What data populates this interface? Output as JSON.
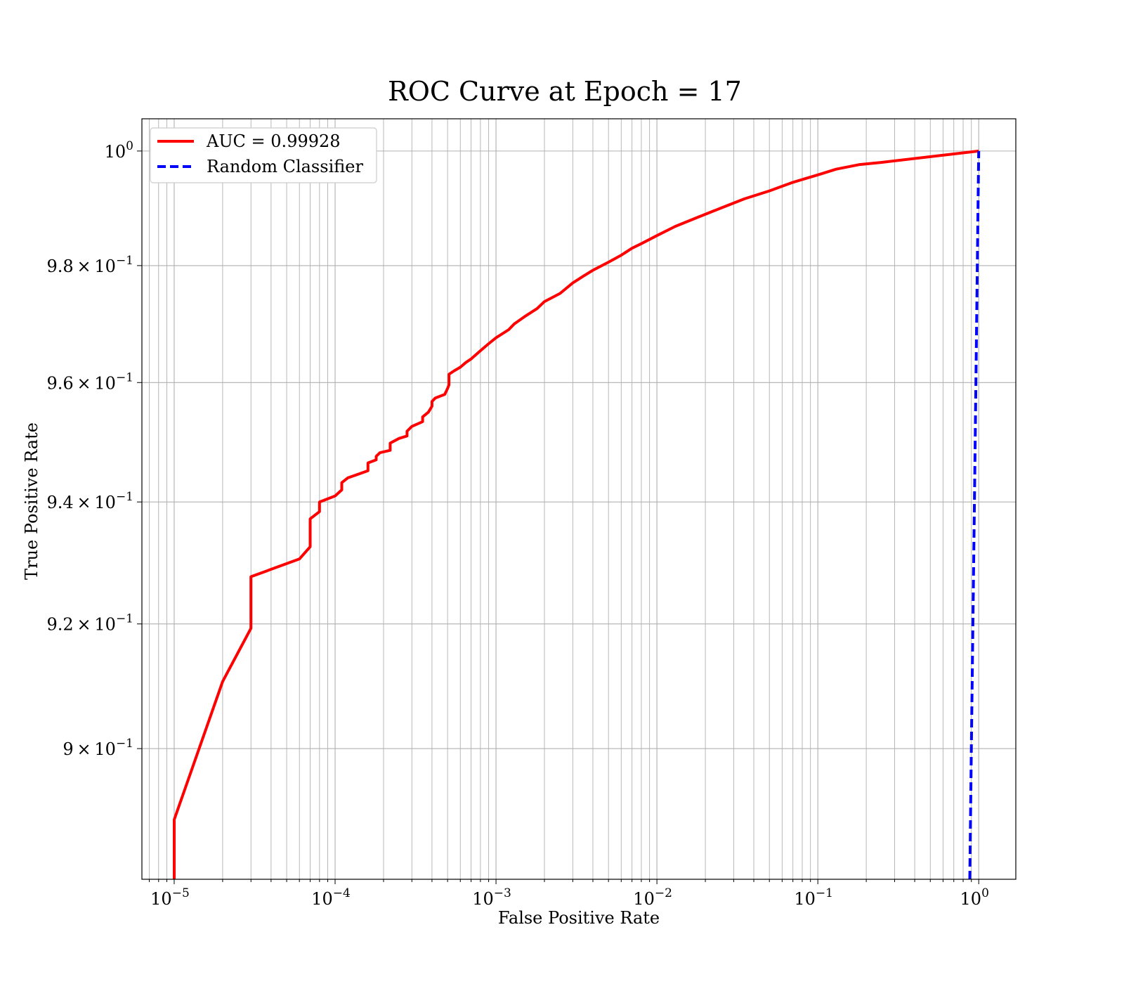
{
  "chart_data": {
    "type": "line",
    "title": "ROC Curve at Epoch = 17",
    "xlabel": "False Positive Rate",
    "ylabel": "True Positive Rate",
    "xscale": "log",
    "yscale": "log",
    "xlim": [
      6.3e-06,
      1.7
    ],
    "ylim": [
      0.8795,
      1.0057
    ],
    "x_ticks": [
      {
        "value": 1e-05,
        "base": "10",
        "exp": "−5"
      },
      {
        "value": 0.0001,
        "base": "10",
        "exp": "−4"
      },
      {
        "value": 0.001,
        "base": "10",
        "exp": "−3"
      },
      {
        "value": 0.01,
        "base": "10",
        "exp": "−2"
      },
      {
        "value": 0.1,
        "base": "10",
        "exp": "−1"
      },
      {
        "value": 1,
        "base": "10",
        "exp": "0"
      }
    ],
    "y_ticks": [
      {
        "value": 1.0,
        "base": "10",
        "exp": "0"
      },
      {
        "value": 0.98,
        "base": "9.8 × 10",
        "exp": "−1"
      },
      {
        "value": 0.96,
        "base": "9.6 × 10",
        "exp": "−1"
      },
      {
        "value": 0.94,
        "base": "9.4 × 10",
        "exp": "−1"
      },
      {
        "value": 0.92,
        "base": "9.2 × 10",
        "exp": "−1"
      },
      {
        "value": 0.9,
        "base": "9 × 10",
        "exp": "−1"
      }
    ],
    "grid": true,
    "legend_position": "top-left",
    "series": [
      {
        "name": "AUC = 0.99928",
        "color": "#ff0000",
        "style": "solid",
        "points": [
          [
            1e-05,
            0.8795
          ],
          [
            1e-05,
            0.8888
          ],
          [
            2e-05,
            0.9107
          ],
          [
            3e-05,
            0.9193
          ],
          [
            3e-05,
            0.9277
          ],
          [
            6e-05,
            0.9306
          ],
          [
            7e-05,
            0.9326
          ],
          [
            7e-05,
            0.9372
          ],
          [
            8e-05,
            0.9384
          ],
          [
            8e-05,
            0.94
          ],
          [
            0.0001,
            0.941
          ],
          [
            0.00011,
            0.942
          ],
          [
            0.00011,
            0.9432
          ],
          [
            0.00012,
            0.944
          ],
          [
            0.00016,
            0.9452
          ],
          [
            0.00016,
            0.9465
          ],
          [
            0.00018,
            0.947
          ],
          [
            0.00018,
            0.9476
          ],
          [
            0.00019,
            0.9482
          ],
          [
            0.00022,
            0.9486
          ],
          [
            0.00022,
            0.9498
          ],
          [
            0.00025,
            0.9506
          ],
          [
            0.00028,
            0.951
          ],
          [
            0.00028,
            0.9518
          ],
          [
            0.0003,
            0.9526
          ],
          [
            0.00035,
            0.9534
          ],
          [
            0.00035,
            0.9542
          ],
          [
            0.00038,
            0.955
          ],
          [
            0.0004,
            0.956
          ],
          [
            0.0004,
            0.9568
          ],
          [
            0.00042,
            0.9574
          ],
          [
            0.00048,
            0.958
          ],
          [
            0.0005,
            0.959
          ],
          [
            0.00051,
            0.9596
          ],
          [
            0.00051,
            0.9614
          ],
          [
            0.00055,
            0.962
          ],
          [
            0.0006,
            0.9626
          ],
          [
            0.00065,
            0.9634
          ],
          [
            0.0007,
            0.964
          ],
          [
            0.0008,
            0.9654
          ],
          [
            0.0009,
            0.9666
          ],
          [
            0.001,
            0.9676
          ],
          [
            0.0012,
            0.969
          ],
          [
            0.0013,
            0.97
          ],
          [
            0.0015,
            0.9712
          ],
          [
            0.0018,
            0.9726
          ],
          [
            0.002,
            0.9738
          ],
          [
            0.0025,
            0.9752
          ],
          [
            0.003,
            0.977
          ],
          [
            0.0035,
            0.9782
          ],
          [
            0.004,
            0.9792
          ],
          [
            0.005,
            0.9806
          ],
          [
            0.006,
            0.9818
          ],
          [
            0.007,
            0.983
          ],
          [
            0.008,
            0.9838
          ],
          [
            0.01,
            0.9852
          ],
          [
            0.013,
            0.9868
          ],
          [
            0.018,
            0.9884
          ],
          [
            0.025,
            0.99
          ],
          [
            0.035,
            0.9916
          ],
          [
            0.05,
            0.993
          ],
          [
            0.07,
            0.9945
          ],
          [
            0.1,
            0.9958
          ],
          [
            0.13,
            0.9968
          ],
          [
            0.18,
            0.9976
          ],
          [
            0.25,
            0.998
          ],
          [
            1.0,
            1.0
          ]
        ]
      },
      {
        "name": "Random Classifier",
        "color": "#0000ff",
        "style": "dashed",
        "points": [
          [
            0.88,
            0.8795
          ],
          [
            0.9,
            0.9
          ],
          [
            0.92,
            0.92
          ],
          [
            0.94,
            0.94
          ],
          [
            0.96,
            0.96
          ],
          [
            0.98,
            0.98
          ],
          [
            1.0,
            1.0
          ]
        ]
      }
    ]
  }
}
